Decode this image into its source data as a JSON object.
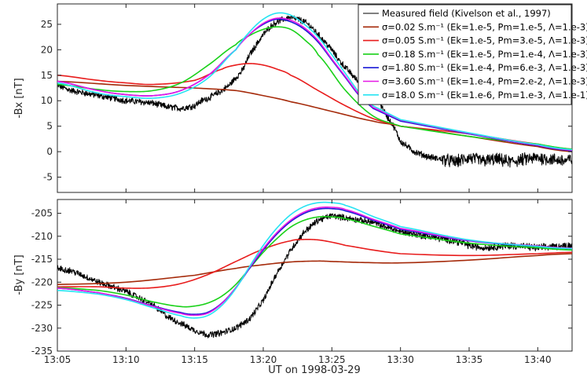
{
  "chart_data": [
    {
      "type": "line",
      "panel": "top",
      "title": "",
      "xlabel": "",
      "ylabel": "-Bx [nT]",
      "xlim": [
        "13:05",
        "13:42:30"
      ],
      "ylim": [
        -8,
        29
      ],
      "xticks": [
        "13:05",
        "13:10",
        "13:15",
        "13:20",
        "13:25",
        "13:30",
        "13:35",
        "13:40"
      ],
      "yticks": [
        -5,
        0,
        5,
        10,
        15,
        20,
        25
      ],
      "grid": false,
      "legend_position": "top-right",
      "series": [
        {
          "name": "Measured field (Kivelson et al., 1997)",
          "color": "#000000",
          "noisy": true,
          "x": [
            "13:05",
            "13:06",
            "13:07",
            "13:08",
            "13:09",
            "13:10",
            "13:11",
            "13:12",
            "13:13",
            "13:14",
            "13:15",
            "13:15:30",
            "13:16",
            "13:17",
            "13:17:30",
            "13:18",
            "13:18:30",
            "13:19",
            "13:19:30",
            "13:20",
            "13:20:30",
            "13:21",
            "13:21:30",
            "13:22",
            "13:22:30",
            "13:23",
            "13:23:30",
            "13:24",
            "13:24:30",
            "13:25",
            "13:25:30",
            "13:26",
            "13:27",
            "13:28",
            "13:28:30",
            "13:29",
            "13:29:30",
            "13:30",
            "13:31",
            "13:32",
            "13:33",
            "13:34",
            "13:35",
            "13:36",
            "13:37",
            "13:38",
            "13:39",
            "13:40",
            "13:41",
            "13:42",
            "13:42:30"
          ],
          "y": [
            13,
            12,
            11.5,
            11,
            10.5,
            10,
            9.8,
            9.5,
            8.8,
            8.5,
            9,
            10,
            10.5,
            12,
            13,
            14.5,
            16,
            19,
            21,
            23,
            24.5,
            25.5,
            26,
            26.3,
            26,
            25.5,
            24.5,
            23,
            21.5,
            20,
            18,
            16.5,
            13.5,
            11,
            9.5,
            7,
            5,
            2,
            0,
            -1,
            -1.5,
            -2,
            -1.2,
            -1.8,
            -1.5,
            -2,
            -1.5,
            -1.2,
            -1.5,
            -1.8,
            -1.5
          ]
        },
        {
          "name": "σ=0.02 S.m⁻¹ (Ek=1.e-5, Pm=1.e-5, Λ=1.e-3)",
          "color": "#a52a0a",
          "x": [
            "13:05",
            "13:10",
            "13:15",
            "13:18",
            "13:20",
            "13:22",
            "13:25",
            "13:28",
            "13:30",
            "13:35",
            "13:40",
            "13:42:30"
          ],
          "y": [
            13.8,
            13,
            12.5,
            12,
            11,
            9.8,
            7.9,
            6,
            5,
            3,
            1,
            0
          ]
        },
        {
          "name": "σ=0.05 S.m⁻¹ (Ek=1.e-5, Pm=3.e-5, Λ=1.e-3)",
          "color": "#e81c1c",
          "x": [
            "13:05",
            "13:08",
            "13:10",
            "13:12",
            "13:15",
            "13:17",
            "13:18",
            "13:19",
            "13:20",
            "13:21",
            "13:22",
            "13:24",
            "13:26",
            "13:28",
            "13:30",
            "13:35",
            "13:40",
            "13:42:30"
          ],
          "y": [
            15,
            14,
            13.5,
            13.2,
            14,
            16.2,
            17,
            17.3,
            17,
            16.2,
            15,
            12,
            9,
            6.5,
            5,
            3.5,
            1.5,
            0.5
          ]
        },
        {
          "name": "σ=0.18 S.m⁻¹ (Ek=1.e-5, Pm=1.e-4, Λ=1.e-3)",
          "color": "#19d119",
          "x": [
            "13:05",
            "13:08",
            "13:10",
            "13:12",
            "13:14",
            "13:16",
            "13:18",
            "13:19",
            "13:20",
            "13:21",
            "13:22",
            "13:23",
            "13:24",
            "13:26",
            "13:28",
            "13:30",
            "13:35",
            "13:40",
            "13:42:30"
          ],
          "y": [
            13.2,
            12.2,
            11.8,
            12,
            13.5,
            17,
            21,
            22.8,
            24,
            24.5,
            24,
            22,
            19,
            12,
            7,
            5,
            3,
            1.5,
            0.5
          ]
        },
        {
          "name": "σ=1.80 S.m⁻¹ (Ek=1.e-4, Pm=6.e-3, Λ=1.e-3)",
          "color": "#1a1ad6",
          "x": [
            "13:05",
            "13:08",
            "13:10",
            "13:12",
            "13:14",
            "13:16",
            "13:18",
            "13:19",
            "13:20",
            "13:21",
            "13:22",
            "13:23",
            "13:24",
            "13:25",
            "13:26",
            "13:27",
            "13:28",
            "13:30",
            "13:35",
            "13:40",
            "13:42:30"
          ],
          "y": [
            13.8,
            12,
            11.2,
            11,
            12,
            15,
            20,
            23,
            25,
            26,
            25.5,
            24,
            21.5,
            18,
            14.5,
            11,
            8.5,
            6,
            3.5,
            1.2,
            0.2
          ]
        },
        {
          "name": "σ=3.60 S.m⁻¹ (Ek=1.e-4, Pm=2.e-2, Λ=1.e-3)",
          "color": "#e619e6",
          "x": [
            "13:05",
            "13:08",
            "13:10",
            "13:12",
            "13:14",
            "13:16",
            "13:18",
            "13:19",
            "13:20",
            "13:21",
            "13:22",
            "13:23",
            "13:24",
            "13:25",
            "13:26",
            "13:27",
            "13:28",
            "13:30",
            "13:35",
            "13:40",
            "13:42:30"
          ],
          "y": [
            13.8,
            12,
            11.2,
            11,
            12,
            15,
            20,
            23,
            25.2,
            26.2,
            25.8,
            24.3,
            21.8,
            18.2,
            14.7,
            11.2,
            8.7,
            6.2,
            3.6,
            1.3,
            0.3
          ]
        },
        {
          "name": "σ=18.0 S.m⁻¹ (Ek=1.e-6, Pm=1.e-3, Λ=1.e-1)",
          "color": "#27e3f2",
          "x": [
            "13:05",
            "13:08",
            "13:10",
            "13:12",
            "13:14",
            "13:16",
            "13:18",
            "13:19",
            "13:20",
            "13:21",
            "13:22",
            "13:23",
            "13:24",
            "13:25",
            "13:26",
            "13:27",
            "13:28",
            "13:30",
            "13:35",
            "13:40",
            "13:42:30"
          ],
          "y": [
            13.5,
            11.5,
            10.8,
            10.5,
            11.5,
            14.5,
            20,
            23.5,
            26,
            27.2,
            26.8,
            25,
            22.5,
            19,
            15.3,
            11.6,
            9,
            6.3,
            3.7,
            1.4,
            0.4
          ]
        }
      ]
    },
    {
      "type": "line",
      "panel": "bottom",
      "title": "",
      "xlabel": "UT on 1998-03-29",
      "ylabel": "-By [nT]",
      "xlim": [
        "13:05",
        "13:42:30"
      ],
      "ylim": [
        -235,
        -202
      ],
      "xticks": [
        "13:05",
        "13:10",
        "13:15",
        "13:20",
        "13:25",
        "13:30",
        "13:35",
        "13:40"
      ],
      "yticks": [
        -235,
        -230,
        -225,
        -220,
        -215,
        -210,
        -205
      ],
      "grid": false,
      "series": [
        {
          "name": "Measured field (Kivelson et al., 1997)",
          "color": "#000000",
          "noisy": true,
          "x": [
            "13:05",
            "13:06",
            "13:08",
            "13:10",
            "13:12",
            "13:13",
            "13:14",
            "13:15",
            "13:16",
            "13:17",
            "13:18",
            "13:19",
            "13:20",
            "13:20:30",
            "13:21",
            "13:22",
            "13:23",
            "13:24",
            "13:25",
            "13:26",
            "13:27",
            "13:28",
            "13:29",
            "13:30",
            "13:32",
            "13:34",
            "13:35",
            "13:36",
            "13:38",
            "13:40",
            "13:42:30"
          ],
          "y": [
            -217,
            -217.5,
            -220,
            -222,
            -225,
            -227.5,
            -229,
            -230.5,
            -231.5,
            -231,
            -230,
            -228,
            -224,
            -221,
            -218,
            -213,
            -209,
            -206.5,
            -205.5,
            -206,
            -206.5,
            -207,
            -208,
            -209,
            -210,
            -211,
            -212,
            -212.5,
            -212,
            -212.5,
            -212
          ]
        },
        {
          "name": "σ=0.02 S.m⁻¹ (Ek=1.e-5, Pm=1.e-5, Λ=1.e-3)",
          "color": "#a52a0a",
          "x": [
            "13:05",
            "13:10",
            "13:15",
            "13:18",
            "13:20",
            "13:22",
            "13:24",
            "13:25",
            "13:27",
            "13:30",
            "13:35",
            "13:40",
            "13:42:30"
          ],
          "y": [
            -220.5,
            -220,
            -218.5,
            -217,
            -216.2,
            -215.6,
            -215.4,
            -215.5,
            -215.7,
            -215.8,
            -215.2,
            -214.2,
            -213.8
          ]
        },
        {
          "name": "σ=0.05 S.m⁻¹ (Ek=1.e-5, Pm=3.e-5, Λ=1.e-3)",
          "color": "#e81c1c",
          "x": [
            "13:05",
            "13:08",
            "13:10",
            "13:12",
            "13:14",
            "13:16",
            "13:18",
            "13:20",
            "13:22",
            "13:23",
            "13:24",
            "13:25",
            "13:26",
            "13:28",
            "13:30",
            "13:35",
            "13:40",
            "13:42:30"
          ],
          "y": [
            -221,
            -221,
            -221.3,
            -221.2,
            -220.3,
            -218.3,
            -215.5,
            -212.8,
            -211,
            -210.7,
            -210.8,
            -211.3,
            -212,
            -213,
            -213.8,
            -214.2,
            -213.8,
            -213.5
          ]
        },
        {
          "name": "σ=0.18 S.m⁻¹ (Ek=1.e-5, Pm=1.e-4, Λ=1.e-3)",
          "color": "#19d119",
          "x": [
            "13:05",
            "13:08",
            "13:10",
            "13:12",
            "13:14",
            "13:15",
            "13:16",
            "13:17",
            "13:18",
            "13:19",
            "13:20",
            "13:21",
            "13:22",
            "13:23",
            "13:24",
            "13:25",
            "13:26",
            "13:28",
            "13:30",
            "13:35",
            "13:40",
            "13:42:30"
          ],
          "y": [
            -221.2,
            -221.8,
            -222.8,
            -224.3,
            -225.3,
            -225.2,
            -224.5,
            -223,
            -220.5,
            -217,
            -213.5,
            -210.5,
            -208,
            -206.5,
            -205.8,
            -205.8,
            -206.2,
            -207.8,
            -209.5,
            -211.5,
            -212.5,
            -213
          ]
        },
        {
          "name": "σ=1.80 S.m⁻¹ (Ek=1.e-4, Pm=6.e-3, Λ=1.e-3)",
          "color": "#1a1ad6",
          "x": [
            "13:05",
            "13:08",
            "13:10",
            "13:12",
            "13:14",
            "13:15",
            "13:16",
            "13:17",
            "13:18",
            "13:19",
            "13:20",
            "13:21",
            "13:22",
            "13:23",
            "13:24",
            "13:25",
            "13:26",
            "13:28",
            "13:30",
            "13:35",
            "13:40",
            "13:42:30"
          ],
          "y": [
            -221.3,
            -222.3,
            -223.5,
            -225.2,
            -226.6,
            -227,
            -226.5,
            -224.5,
            -221.2,
            -217,
            -213,
            -209.5,
            -206.8,
            -205,
            -204.1,
            -204,
            -204.5,
            -206.5,
            -208.5,
            -211,
            -212.2,
            -212.7
          ]
        },
        {
          "name": "σ=3.60 S.m⁻¹ (Ek=1.e-4, Pm=2.e-2, Λ=1.e-3)",
          "color": "#e619e6",
          "x": [
            "13:05",
            "13:08",
            "13:10",
            "13:12",
            "13:14",
            "13:15",
            "13:16",
            "13:17",
            "13:18",
            "13:19",
            "13:20",
            "13:21",
            "13:22",
            "13:23",
            "13:24",
            "13:25",
            "13:26",
            "13:28",
            "13:30",
            "13:35",
            "13:40",
            "13:42:30"
          ],
          "y": [
            -221.3,
            -222.3,
            -223.6,
            -225.3,
            -226.8,
            -227.2,
            -226.7,
            -224.6,
            -221.2,
            -216.8,
            -212.7,
            -209.2,
            -206.5,
            -204.7,
            -203.8,
            -203.7,
            -204.2,
            -206.3,
            -208.3,
            -210.9,
            -212.1,
            -212.6
          ]
        },
        {
          "name": "σ=18.0 S.m⁻¹ (Ek=1.e-6, Pm=1.e-3, Λ=1.e-1)",
          "color": "#27e3f2",
          "x": [
            "13:05",
            "13:08",
            "13:10",
            "13:12",
            "13:14",
            "13:15",
            "13:16",
            "13:17",
            "13:18",
            "13:19",
            "13:20",
            "13:21",
            "13:22",
            "13:23",
            "13:24",
            "13:25",
            "13:26",
            "13:28",
            "13:30",
            "13:35",
            "13:40",
            "13:42:30"
          ],
          "y": [
            -221.8,
            -222.6,
            -223.8,
            -225.6,
            -227.3,
            -227.8,
            -227.2,
            -225,
            -221.4,
            -216.6,
            -212,
            -208.2,
            -205.3,
            -203.5,
            -202.7,
            -202.7,
            -203.3,
            -205.7,
            -207.9,
            -210.8,
            -212.2,
            -212.7
          ]
        }
      ]
    }
  ]
}
